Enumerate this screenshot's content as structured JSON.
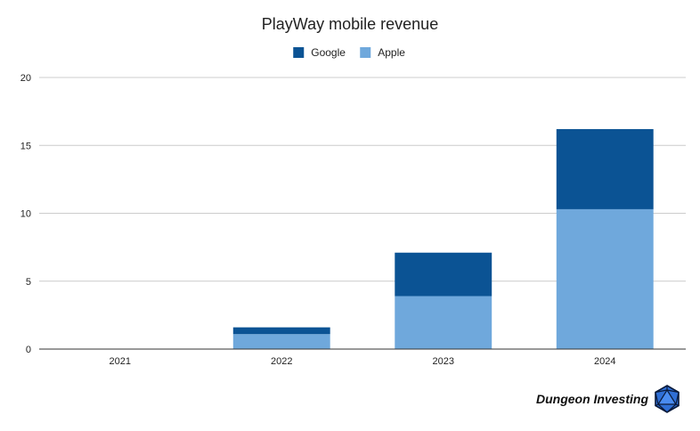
{
  "chart_data": {
    "type": "bar",
    "stacked": true,
    "title": "PlayWay mobile revenue",
    "categories": [
      "2021",
      "2022",
      "2023",
      "2024"
    ],
    "series": [
      {
        "name": "Apple",
        "color": "#6fa8dc",
        "values": [
          0,
          1.1,
          3.9,
          10.3
        ]
      },
      {
        "name": "Google",
        "color": "#0b5394",
        "values": [
          0,
          0.5,
          3.2,
          5.9
        ]
      }
    ],
    "legend_order": [
      "Google",
      "Apple"
    ],
    "legend_position": "top-center",
    "ylim": [
      0,
      20
    ],
    "yticks": [
      0,
      5,
      10,
      15,
      20
    ],
    "grid": true,
    "xlabel": "",
    "ylabel": ""
  },
  "branding": {
    "text": "Dungeon Investing",
    "icon": "d20-dice-icon"
  }
}
